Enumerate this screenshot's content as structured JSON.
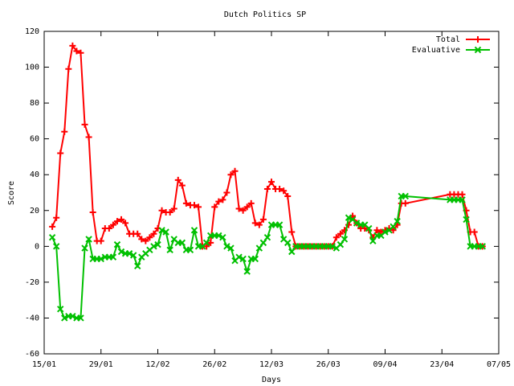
{
  "chart_data": {
    "type": "line",
    "title": "Dutch Politics SP",
    "x_label": "Days",
    "y_label": "Score",
    "x": [
      2,
      3,
      4,
      5,
      6,
      7,
      8,
      9,
      10,
      11,
      12,
      13,
      14,
      15,
      16,
      17,
      18,
      19,
      20,
      21,
      22,
      23,
      24,
      25,
      26,
      27,
      28,
      29,
      30,
      31,
      32,
      33,
      34,
      35,
      36,
      37,
      38,
      39,
      40,
      41,
      42,
      43,
      44,
      45,
      46,
      47,
      48,
      49,
      50,
      51,
      52,
      53,
      54,
      55,
      56,
      57,
      58,
      59,
      60,
      61,
      62,
      63,
      64,
      65,
      66,
      67,
      68,
      69,
      70,
      71,
      72,
      73,
      74,
      75,
      76,
      77,
      78,
      79,
      80,
      81,
      82,
      83,
      84,
      85,
      86,
      87,
      88,
      89,
      100,
      101,
      102,
      103,
      104,
      105,
      106,
      107,
      108
    ],
    "series": [
      {
        "name": "Total",
        "color": "#ff0000",
        "marker": "plus",
        "values": [
          11,
          16,
          52,
          64,
          99,
          112,
          109,
          108,
          68,
          61,
          19,
          3,
          3,
          10,
          10,
          12,
          14,
          15,
          13,
          7,
          7,
          7,
          4,
          3,
          5,
          7,
          10,
          20,
          19,
          19,
          21,
          37,
          34,
          24,
          23,
          23,
          22,
          0,
          0,
          2,
          22,
          25,
          26,
          30,
          40,
          42,
          21,
          20,
          22,
          24,
          13,
          12,
          15,
          32,
          36,
          32,
          32,
          31,
          28,
          8,
          0,
          0,
          0,
          0,
          0,
          0,
          0,
          0,
          0,
          0,
          5,
          7,
          9,
          12,
          17,
          13,
          10,
          10,
          9,
          5,
          9,
          8,
          9,
          10,
          9,
          12,
          24,
          24,
          29,
          29,
          29,
          29,
          20,
          8,
          8,
          0,
          0
        ]
      },
      {
        "name": "Evaluative",
        "color": "#00c000",
        "marker": "cross",
        "values": [
          5,
          0,
          -35,
          -40,
          -39,
          -39,
          -40,
          -40,
          -1,
          4,
          -7,
          -7,
          -7,
          -6,
          -6,
          -6,
          1,
          -3,
          -4,
          -4,
          -5,
          -11,
          -6,
          -4,
          -2,
          0,
          1,
          9,
          8,
          -2,
          4,
          2,
          2,
          -2,
          -2,
          9,
          0,
          0,
          2,
          6,
          6,
          6,
          5,
          0,
          -1,
          -8,
          -6,
          -7,
          -14,
          -7,
          -7,
          -1,
          2,
          5,
          12,
          12,
          12,
          4,
          2,
          -3,
          0,
          0,
          0,
          0,
          0,
          0,
          0,
          0,
          0,
          0,
          -1,
          1,
          4,
          16,
          15,
          13,
          12,
          12,
          10,
          3,
          6,
          6,
          8,
          9,
          11,
          14,
          28,
          28,
          26,
          26,
          26,
          26,
          15,
          0,
          0,
          0,
          0
        ]
      }
    ],
    "xlim": [
      0,
      112
    ],
    "xticks": [
      {
        "value": 0,
        "label": "15/01"
      },
      {
        "value": 14,
        "label": "29/01"
      },
      {
        "value": 28,
        "label": "12/02"
      },
      {
        "value": 42,
        "label": "26/02"
      },
      {
        "value": 56,
        "label": "12/03"
      },
      {
        "value": 70,
        "label": "26/03"
      },
      {
        "value": 84,
        "label": "09/04"
      },
      {
        "value": 98,
        "label": "23/04"
      },
      {
        "value": 112,
        "label": "07/05"
      }
    ],
    "ylim": [
      -60,
      120
    ],
    "yticks": [
      -60,
      -40,
      -20,
      0,
      20,
      40,
      60,
      80,
      100,
      120
    ],
    "grid": false,
    "legend": "top-right"
  }
}
